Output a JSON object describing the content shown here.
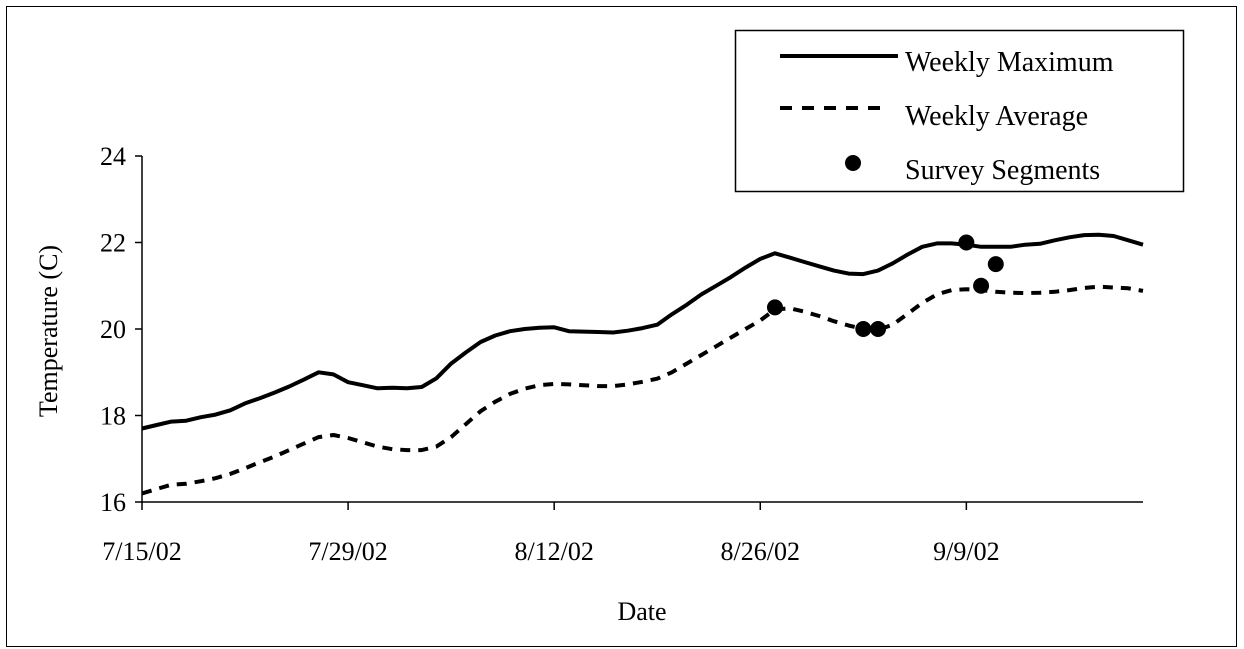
{
  "chart_data": {
    "type": "line",
    "title": "",
    "xlabel": "Date",
    "ylabel": "Temperature (C)",
    "x_axis": "date",
    "xlim": [
      "7/15/02",
      "9/21/02"
    ],
    "ylim": [
      16,
      24
    ],
    "y_ticks": [
      16,
      18,
      20,
      22,
      24
    ],
    "x_tick_labels": [
      "7/15/02",
      "7/29/02",
      "8/12/02",
      "8/26/02",
      "9/9/02"
    ],
    "grid": false,
    "legend_position": "top-right",
    "series": [
      {
        "name": "Weekly Maximum",
        "style": "solid",
        "x": [
          "7/15/02",
          "7/16/02",
          "7/17/02",
          "7/18/02",
          "7/19/02",
          "7/20/02",
          "7/21/02",
          "7/22/02",
          "7/23/02",
          "7/24/02",
          "7/25/02",
          "7/26/02",
          "7/27/02",
          "7/28/02",
          "7/29/02",
          "7/30/02",
          "7/31/02",
          "8/1/02",
          "8/2/02",
          "8/3/02",
          "8/4/02",
          "8/5/02",
          "8/6/02",
          "8/7/02",
          "8/8/02",
          "8/9/02",
          "8/10/02",
          "8/11/02",
          "8/12/02",
          "8/13/02",
          "8/14/02",
          "8/15/02",
          "8/16/02",
          "8/17/02",
          "8/18/02",
          "8/19/02",
          "8/20/02",
          "8/21/02",
          "8/22/02",
          "8/23/02",
          "8/24/02",
          "8/25/02",
          "8/26/02",
          "8/27/02",
          "8/28/02",
          "8/29/02",
          "8/30/02",
          "8/31/02",
          "9/1/02",
          "9/2/02",
          "9/3/02",
          "9/4/02",
          "9/5/02",
          "9/6/02",
          "9/7/02",
          "9/8/02",
          "9/9/02",
          "9/10/02",
          "9/11/02",
          "9/12/02",
          "9/13/02",
          "9/14/02",
          "9/15/02",
          "9/16/02",
          "9/17/02",
          "9/18/02",
          "9/19/02",
          "9/20/02",
          "9/21/02"
        ],
        "values": [
          17.7,
          17.78,
          17.86,
          17.88,
          17.96,
          18.02,
          18.12,
          18.28,
          18.4,
          18.53,
          18.67,
          18.83,
          19.0,
          18.95,
          18.77,
          18.7,
          18.63,
          18.64,
          18.63,
          18.66,
          18.86,
          19.2,
          19.46,
          19.7,
          19.85,
          19.95,
          20.0,
          20.03,
          20.04,
          19.95,
          19.94,
          19.93,
          19.92,
          19.96,
          20.02,
          20.1,
          20.34,
          20.56,
          20.8,
          21.0,
          21.2,
          21.42,
          21.62,
          21.75,
          21.65,
          21.55,
          21.45,
          21.35,
          21.28,
          21.27,
          21.35,
          21.52,
          21.72,
          21.9,
          21.98,
          21.98,
          21.95,
          21.9,
          21.9,
          21.9,
          21.95,
          21.97,
          22.05,
          22.12,
          22.17,
          22.18,
          22.15,
          22.05,
          21.95
        ]
      },
      {
        "name": "Weekly Average",
        "style": "dashed",
        "x": [
          "7/15/02",
          "7/16/02",
          "7/17/02",
          "7/18/02",
          "7/19/02",
          "7/20/02",
          "7/21/02",
          "7/22/02",
          "7/23/02",
          "7/24/02",
          "7/25/02",
          "7/26/02",
          "7/27/02",
          "7/28/02",
          "7/29/02",
          "7/30/02",
          "7/31/02",
          "8/1/02",
          "8/2/02",
          "8/3/02",
          "8/4/02",
          "8/5/02",
          "8/6/02",
          "8/7/02",
          "8/8/02",
          "8/9/02",
          "8/10/02",
          "8/11/02",
          "8/12/02",
          "8/13/02",
          "8/14/02",
          "8/15/02",
          "8/16/02",
          "8/17/02",
          "8/18/02",
          "8/19/02",
          "8/20/02",
          "8/21/02",
          "8/22/02",
          "8/23/02",
          "8/24/02",
          "8/25/02",
          "8/26/02",
          "8/27/02",
          "8/28/02",
          "8/29/02",
          "8/30/02",
          "8/31/02",
          "9/1/02",
          "9/2/02",
          "9/3/02",
          "9/4/02",
          "9/5/02",
          "9/6/02",
          "9/7/02",
          "9/8/02",
          "9/9/02",
          "9/10/02",
          "9/11/02",
          "9/12/02",
          "9/13/02",
          "9/14/02",
          "9/15/02",
          "9/16/02",
          "9/17/02",
          "9/18/02",
          "9/19/02",
          "9/20/02",
          "9/21/02"
        ],
        "values": [
          16.2,
          16.3,
          16.4,
          16.42,
          16.48,
          16.55,
          16.65,
          16.78,
          16.92,
          17.05,
          17.2,
          17.35,
          17.5,
          17.55,
          17.48,
          17.38,
          17.28,
          17.22,
          17.2,
          17.2,
          17.28,
          17.5,
          17.8,
          18.1,
          18.32,
          18.5,
          18.62,
          18.7,
          18.73,
          18.72,
          18.7,
          18.68,
          18.68,
          18.72,
          18.78,
          18.85,
          19.0,
          19.2,
          19.4,
          19.6,
          19.8,
          20.0,
          20.2,
          20.45,
          20.48,
          20.4,
          20.3,
          20.18,
          20.08,
          20.0,
          19.98,
          20.1,
          20.35,
          20.6,
          20.8,
          20.9,
          20.92,
          20.9,
          20.86,
          20.84,
          20.83,
          20.84,
          20.86,
          20.9,
          20.95,
          20.98,
          20.96,
          20.94,
          20.88
        ]
      },
      {
        "name": "Survey Segments",
        "style": "markers",
        "x": [
          "8/27/02",
          "9/2/02",
          "9/3/02",
          "9/9/02",
          "9/10/02",
          "9/11/02"
        ],
        "values": [
          20.5,
          20.0,
          20.0,
          22.0,
          21.0,
          21.5
        ]
      }
    ]
  }
}
